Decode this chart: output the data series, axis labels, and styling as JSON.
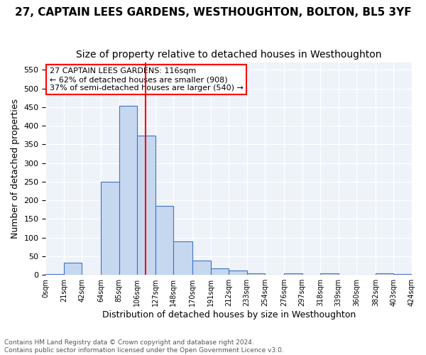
{
  "title": "27, CAPTAIN LEES GARDENS, WESTHOUGHTON, BOLTON, BL5 3YF",
  "subtitle": "Size of property relative to detached houses in Westhoughton",
  "xlabel": "Distribution of detached houses by size in Westhoughton",
  "ylabel": "Number of detached properties",
  "footnote1": "Contains HM Land Registry data © Crown copyright and database right 2024.",
  "footnote2": "Contains public sector information licensed under the Open Government Licence v3.0.",
  "annotation_line1": "27 CAPTAIN LEES GARDENS: 116sqm",
  "annotation_line2": "← 62% of detached houses are smaller (908)",
  "annotation_line3": "37% of semi-detached houses are larger (540) →",
  "bar_color": "#c5d8f0",
  "bar_edge_color": "#4472c4",
  "vline_color": "red",
  "vline_x": 116,
  "annotation_box_edge_color": "red",
  "bins": [
    0,
    21,
    42,
    64,
    85,
    106,
    127,
    148,
    170,
    191,
    212,
    233,
    254,
    276,
    297,
    318,
    339,
    360,
    382,
    403,
    424
  ],
  "bin_labels": [
    "0sqm",
    "21sqm",
    "42sqm",
    "64sqm",
    "85sqm",
    "106sqm",
    "127sqm",
    "148sqm",
    "170sqm",
    "191sqm",
    "212sqm",
    "233sqm",
    "254sqm",
    "276sqm",
    "297sqm",
    "318sqm",
    "339sqm",
    "360sqm",
    "382sqm",
    "403sqm",
    "424sqm"
  ],
  "bar_heights": [
    3,
    33,
    0,
    250,
    453,
    373,
    185,
    90,
    38,
    18,
    11,
    4,
    0,
    4,
    0,
    5,
    0,
    0,
    4,
    3
  ],
  "ylim": [
    0,
    570
  ],
  "yticks": [
    0,
    50,
    100,
    150,
    200,
    250,
    300,
    350,
    400,
    450,
    500,
    550
  ],
  "background_color": "#eef2f9",
  "grid_color": "#ffffff",
  "title_fontsize": 11,
  "subtitle_fontsize": 10
}
